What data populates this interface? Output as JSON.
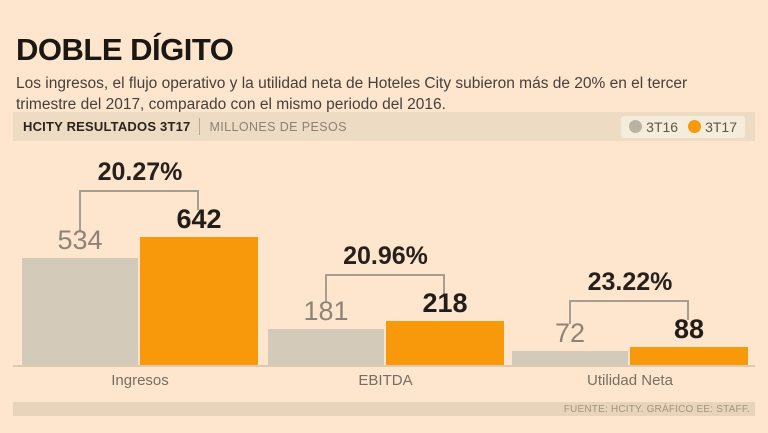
{
  "title": "DOBLE DÍGITO",
  "subtitle": "Los ingresos, el flujo operativo y la utilidad neta de Hoteles City subieron más de 20% en el tercer trimestre del 2017, comparado con el mismo periodo del 2016.",
  "header": {
    "label": "HCITY RESULTADOS 3T17",
    "units": "MILLONES DE PESOS",
    "legend": [
      {
        "label": "3T16",
        "color": "#b9b2a5"
      },
      {
        "label": "3T17",
        "color": "#f8990b"
      }
    ]
  },
  "chart_data": {
    "type": "bar",
    "title": "HCITY RESULTADOS 3T17",
    "units": "MILLONES DE PESOS",
    "categories": [
      "Ingresos",
      "EBITDA",
      "Utilidad Neta"
    ],
    "series": [
      {
        "name": "3T16",
        "color": "#d4caba",
        "values": [
          534,
          181,
          72
        ]
      },
      {
        "name": "3T17",
        "color": "#f8990b",
        "values": [
          642,
          218,
          88
        ]
      }
    ],
    "groups": [
      {
        "category": "Ingresos",
        "t16": 534,
        "t17": 642,
        "change_pct": "20.27%"
      },
      {
        "category": "EBITDA",
        "t16": 181,
        "t17": 218,
        "change_pct": "20.96%"
      },
      {
        "category": "Utilidad Neta",
        "t16": 72,
        "t17": 88,
        "change_pct": "23.22%"
      }
    ],
    "ylim": [
      0,
      700
    ],
    "grid": false,
    "value_axis_visible": false,
    "legend_position": "top-right"
  },
  "footer": {
    "source": "FUENTE: HCITY. GRÁFICO EE: STAFF."
  },
  "colors": {
    "background": "#fde5ce",
    "header_strip": "#eedbc4",
    "legend_box": "#f6ecdb",
    "bar_gray": "#d4caba",
    "bar_orange": "#f8990b",
    "baseline": "#d9cbb4",
    "bracket": "#a89e8f",
    "footer_strip": "#e7d4ba"
  }
}
